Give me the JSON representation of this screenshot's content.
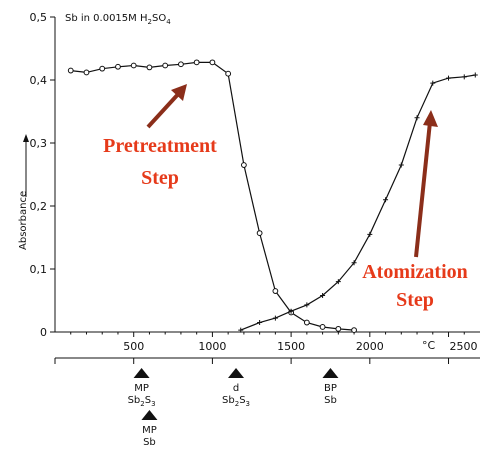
{
  "chart_data": {
    "type": "line",
    "title": "Sb in 0.0015M H",
    "title_sub": "2",
    "title_tail": "SO",
    "title_sub2": "4",
    "xlabel": "°C",
    "ylabel": "Absorbance",
    "xlim": [
      0,
      2700
    ],
    "ylim": [
      0,
      0.5
    ],
    "x_ticks": [
      500,
      1000,
      1500,
      2000,
      2500
    ],
    "y_ticks": [
      0,
      0.1,
      0.2,
      0.3,
      0.4,
      0.5
    ],
    "x_tick_labels": [
      "500",
      "1000",
      "1500",
      "2000",
      "2500"
    ],
    "y_tick_labels": [
      "0",
      "0,1",
      "0,2",
      "0,3",
      "0,4",
      "0,5"
    ],
    "grid": false,
    "series": [
      {
        "marker": "circle",
        "points": [
          [
            100,
            0.415
          ],
          [
            200,
            0.412
          ],
          [
            300,
            0.418
          ],
          [
            400,
            0.421
          ],
          [
            500,
            0.423
          ],
          [
            600,
            0.42
          ],
          [
            700,
            0.423
          ],
          [
            800,
            0.425
          ],
          [
            900,
            0.428
          ],
          [
            1000,
            0.428
          ],
          [
            1100,
            0.41
          ],
          [
            1200,
            0.265
          ],
          [
            1300,
            0.157
          ],
          [
            1400,
            0.065
          ],
          [
            1500,
            0.031
          ],
          [
            1600,
            0.015
          ],
          [
            1700,
            0.008
          ],
          [
            1800,
            0.005
          ],
          [
            1900,
            0.003
          ]
        ]
      },
      {
        "marker": "plus",
        "points": [
          [
            1180,
            0.003
          ],
          [
            1300,
            0.015
          ],
          [
            1400,
            0.022
          ],
          [
            1500,
            0.033
          ],
          [
            1600,
            0.043
          ],
          [
            1700,
            0.058
          ],
          [
            1800,
            0.08
          ],
          [
            1900,
            0.11
          ],
          [
            2000,
            0.155
          ],
          [
            2100,
            0.21
          ],
          [
            2200,
            0.265
          ],
          [
            2300,
            0.34
          ],
          [
            2400,
            0.395
          ],
          [
            2500,
            0.403
          ],
          [
            2600,
            0.405
          ],
          [
            2670,
            0.408
          ]
        ]
      }
    ],
    "markers": [
      {
        "x": 550,
        "lines": [
          "MP",
          "Sb2S3"
        ]
      },
      {
        "x": 600,
        "lines": [
          "MP",
          "Sb"
        ]
      },
      {
        "x": 1150,
        "lines": [
          "d",
          "Sb2S3"
        ]
      },
      {
        "x": 1750,
        "lines": [
          "BP",
          "Sb"
        ]
      }
    ],
    "annotations": [
      {
        "lines": [
          "Pretreatment",
          "Step"
        ],
        "color": "#e63a1a"
      },
      {
        "lines": [
          "Atomization",
          "Step"
        ],
        "color": "#e63a1a"
      }
    ],
    "colors": {
      "annotation": "#e63a1a",
      "arrow": "#8b2e1a",
      "line": "#111111"
    }
  }
}
